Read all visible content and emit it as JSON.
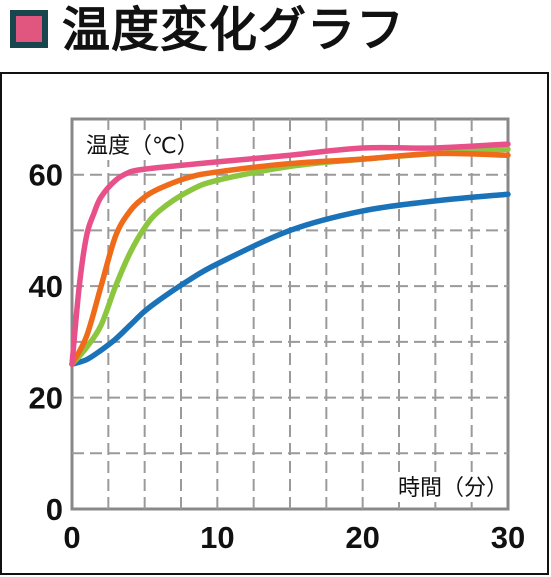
{
  "header": {
    "title": "温度変化グラフ",
    "marker_color": "#e0567e",
    "marker_border": "#17464f"
  },
  "chart_data": {
    "type": "line",
    "title": "温度変化グラフ",
    "xlabel": "時間（分）",
    "ylabel": "温度（℃）",
    "xlim": [
      0,
      30
    ],
    "ylim": [
      0,
      70
    ],
    "x_ticks": [
      0,
      10,
      20,
      30
    ],
    "y_ticks": [
      0,
      20,
      40,
      60
    ],
    "grid": true,
    "series": [
      {
        "color": "#e8508a",
        "x": [
          0,
          0.5,
          1,
          1.5,
          2,
          3,
          4,
          5,
          6,
          8,
          10,
          15,
          20,
          25,
          30
        ],
        "y": [
          26,
          40,
          49,
          53,
          56,
          59,
          60.5,
          61,
          61.3,
          61.8,
          62.3,
          63.5,
          64.8,
          64.8,
          65.5
        ]
      },
      {
        "color": "#ef6b1a",
        "x": [
          0,
          1,
          2,
          3,
          4,
          5,
          6,
          8,
          10,
          15,
          20,
          25,
          30
        ],
        "y": [
          26,
          31,
          40,
          49,
          53.5,
          56,
          57.5,
          59.5,
          60.5,
          62,
          62.8,
          63.8,
          63.5
        ]
      },
      {
        "color": "#8cc63f",
        "x": [
          0,
          1,
          2,
          3,
          4,
          5,
          6,
          8,
          10,
          15,
          20,
          25,
          30
        ],
        "y": [
          26,
          29,
          33,
          40,
          46,
          50.5,
          53.5,
          57,
          59,
          61.5,
          62.8,
          63.8,
          64.6
        ]
      },
      {
        "color": "#1a73b8",
        "x": [
          0,
          1,
          2,
          3,
          4,
          5,
          6,
          8,
          10,
          15,
          20,
          25,
          30
        ],
        "y": [
          26,
          26.8,
          28.5,
          30.5,
          33,
          35.5,
          37.5,
          41,
          44,
          50,
          53.5,
          55.3,
          56.5
        ]
      }
    ]
  }
}
